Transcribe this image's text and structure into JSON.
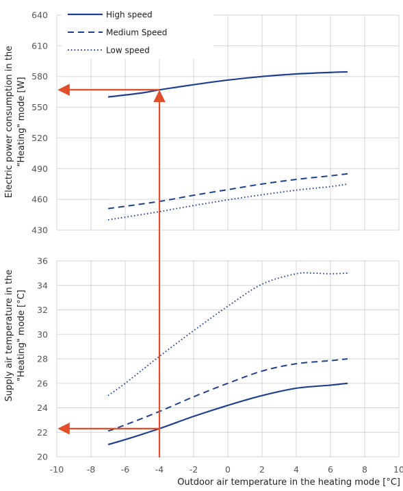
{
  "chart_data": [
    {
      "type": "line",
      "panel": "top",
      "ylabel_line1": "Electric power consumption in the",
      "ylabel_line2": "\"Heating\" mode [W]",
      "xlim": [
        -10,
        10
      ],
      "ylim": [
        430,
        640
      ],
      "ytick_labels": [
        "430",
        "460",
        "490",
        "520",
        "550",
        "580",
        "610",
        "640"
      ],
      "yticks": [
        430,
        460,
        490,
        520,
        550,
        580,
        610,
        640
      ],
      "grid": true,
      "legend_position": "top-left",
      "series": [
        {
          "name": "High speed",
          "style": "solid",
          "x": [
            -7,
            -5,
            -4,
            -2,
            0,
            2,
            4,
            6,
            7
          ],
          "y": [
            560,
            564,
            567,
            572,
            576.5,
            580,
            582.5,
            584,
            584.5
          ]
        },
        {
          "name": "Medium Speed",
          "style": "dashed",
          "x": [
            -7,
            -4,
            -2,
            0,
            2,
            4,
            6,
            7
          ],
          "y": [
            451,
            458,
            464,
            469.5,
            475,
            479.5,
            483,
            485
          ]
        },
        {
          "name": "Low speed",
          "style": "dotted",
          "x": [
            -7,
            -4,
            -2,
            0,
            2,
            4,
            6,
            7
          ],
          "y": [
            440,
            448,
            454,
            459.5,
            464.5,
            469,
            472.5,
            475
          ]
        }
      ],
      "annotation": {
        "x": -4,
        "y": 567,
        "color": "#e04e2a"
      }
    },
    {
      "type": "line",
      "panel": "bottom",
      "xlabel": "Outdoor air temperature in the heating mode [°C]",
      "ylabel_line1": "Supply air temperature in the",
      "ylabel_line2": "\"Heating\" mode [°C]",
      "xlim": [
        -10,
        10
      ],
      "ylim": [
        20,
        36
      ],
      "xtick_labels": [
        "-10",
        "-8",
        "-6",
        "-4",
        "-2",
        "0",
        "2",
        "4",
        "6",
        "8",
        "10"
      ],
      "xticks": [
        -10,
        -8,
        -6,
        -4,
        -2,
        0,
        2,
        4,
        6,
        8,
        10
      ],
      "ytick_labels": [
        "20",
        "22",
        "24",
        "26",
        "28",
        "30",
        "32",
        "34",
        "36"
      ],
      "yticks": [
        20,
        22,
        24,
        26,
        28,
        30,
        32,
        34,
        36
      ],
      "grid": true,
      "series": [
        {
          "name": "High speed",
          "style": "solid",
          "x": [
            -7,
            -6,
            -4,
            -2,
            0,
            2,
            4,
            6,
            7
          ],
          "y": [
            21,
            21.4,
            22.3,
            23.3,
            24.2,
            25,
            25.6,
            25.85,
            26
          ]
        },
        {
          "name": "Medium Speed",
          "style": "dashed",
          "x": [
            -7,
            -6,
            -4,
            -2,
            0,
            2,
            4,
            6,
            7
          ],
          "y": [
            22.1,
            22.6,
            23.7,
            24.9,
            26,
            27,
            27.6,
            27.85,
            28
          ]
        },
        {
          "name": "Low speed",
          "style": "dotted",
          "x": [
            -7,
            -6,
            -4,
            -2,
            0,
            2,
            4,
            5,
            6,
            7
          ],
          "y": [
            25,
            26,
            28.2,
            30.3,
            32.3,
            34.1,
            34.95,
            35,
            34.95,
            35
          ]
        }
      ],
      "annotation": {
        "x": -4,
        "y": 22.3,
        "color": "#e04e2a"
      }
    }
  ],
  "colors": {
    "series": "#1d3f8f",
    "grid": "#d4d4d4",
    "arrow": "#e04e2a"
  }
}
